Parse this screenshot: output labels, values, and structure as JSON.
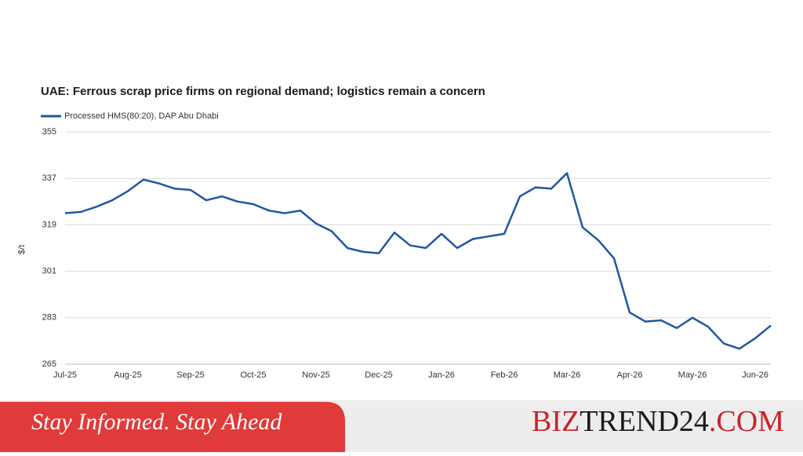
{
  "chart_data": {
    "type": "line",
    "title": "UAE: Ferrous scrap price firms on regional demand; logistics remain a concern",
    "y_label": "$/t",
    "categories": [
      "Jul-25",
      null,
      null,
      null,
      "Aug-25",
      null,
      null,
      null,
      "Sep-25",
      null,
      null,
      null,
      "Oct-25",
      null,
      null,
      null,
      "Nov-25",
      null,
      null,
      null,
      "Dec-25",
      null,
      null,
      null,
      "Jan-26",
      null,
      null,
      null,
      "Feb-26",
      null,
      null,
      null,
      "Mar-26",
      null,
      null,
      null,
      "Apr-26",
      null,
      null,
      null,
      "May-26",
      null,
      null,
      null,
      "Jun-26",
      null
    ],
    "series": [
      {
        "name": "Processed HMS(80:20), DAP Abu Dhabi",
        "color": "#1f57a4",
        "values": [
          323.5,
          324,
          326,
          328.5,
          332,
          336.5,
          335,
          333,
          332.5,
          328.5,
          330,
          328,
          327,
          324.5,
          323.5,
          324.5,
          319.5,
          316.5,
          310,
          308.5,
          308,
          316,
          311,
          310,
          315.5,
          310,
          313.5,
          314.5,
          315.5,
          330,
          333.5,
          333,
          339,
          318,
          313,
          306,
          285,
          281.5,
          282,
          279,
          283,
          279.5,
          273,
          271,
          275,
          280
        ]
      }
    ],
    "ylim": [
      265,
      355
    ],
    "yticks": [
      265,
      283,
      301,
      319,
      337,
      355
    ],
    "grid": true,
    "legend": "top-left"
  },
  "banner": {
    "slogan": "Stay Informed. Stay Ahead",
    "brand": [
      {
        "text": "BIZ",
        "color": "#c8232a"
      },
      {
        "text": "TREND",
        "color": "#1a1a1a"
      },
      {
        "text": "24",
        "color": "#1a1a1a"
      },
      {
        "text": ".COM",
        "color": "#c8232a"
      }
    ]
  }
}
